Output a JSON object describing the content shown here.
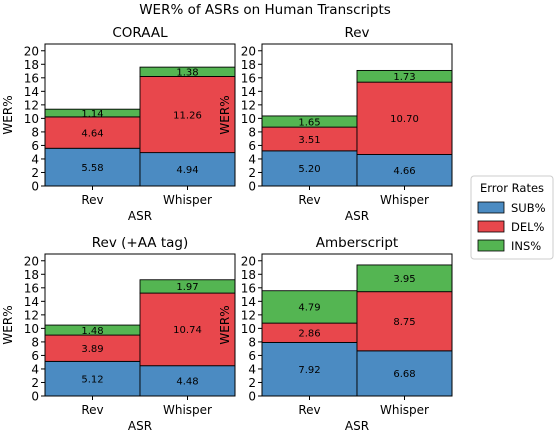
{
  "figure_title": "WER% of ASRs on Human Transcripts",
  "legend": {
    "title": "Error Rates",
    "placement": "right-center",
    "entries": [
      {
        "label": "SUB%",
        "color": "#4b8bc2"
      },
      {
        "label": "DEL%",
        "color": "#e8474c"
      },
      {
        "label": "INS%",
        "color": "#54b552"
      }
    ]
  },
  "chart_data": [
    {
      "type": "bar",
      "stacked": true,
      "title": "CORAAL",
      "xlabel": "ASR",
      "ylabel": "WER%",
      "ylim": [
        0,
        21
      ],
      "yticks": [
        0,
        2,
        4,
        6,
        8,
        10,
        12,
        14,
        16,
        18,
        20
      ],
      "categories": [
        "Rev",
        "Whisper"
      ],
      "series": [
        {
          "name": "SUB%",
          "values": [
            5.58,
            4.94
          ],
          "labels": [
            "5.58",
            "4.94"
          ]
        },
        {
          "name": "DEL%",
          "values": [
            4.64,
            11.26
          ],
          "labels": [
            "4.64",
            "11.26"
          ]
        },
        {
          "name": "INS%",
          "values": [
            1.14,
            1.38
          ],
          "labels": [
            "1.14",
            "1.38"
          ]
        }
      ]
    },
    {
      "type": "bar",
      "stacked": true,
      "title": "Rev",
      "xlabel": "ASR",
      "ylabel": "WER%",
      "ylim": [
        0,
        21
      ],
      "yticks": [
        0,
        2,
        4,
        6,
        8,
        10,
        12,
        14,
        16,
        18,
        20
      ],
      "categories": [
        "Rev",
        "Whisper"
      ],
      "series": [
        {
          "name": "SUB%",
          "values": [
            5.2,
            4.66
          ],
          "labels": [
            "5.20",
            "4.66"
          ]
        },
        {
          "name": "DEL%",
          "values": [
            3.51,
            10.7
          ],
          "labels": [
            "3.51",
            "10.70"
          ]
        },
        {
          "name": "INS%",
          "values": [
            1.65,
            1.73
          ],
          "labels": [
            "1.65",
            "1.73"
          ]
        }
      ]
    },
    {
      "type": "bar",
      "stacked": true,
      "title": "Rev (+AA tag)",
      "xlabel": "ASR",
      "ylabel": "WER%",
      "ylim": [
        0,
        21
      ],
      "yticks": [
        0,
        2,
        4,
        6,
        8,
        10,
        12,
        14,
        16,
        18,
        20
      ],
      "categories": [
        "Rev",
        "Whisper"
      ],
      "series": [
        {
          "name": "SUB%",
          "values": [
            5.12,
            4.48
          ],
          "labels": [
            "5.12",
            "4.48"
          ]
        },
        {
          "name": "DEL%",
          "values": [
            3.89,
            10.74
          ],
          "labels": [
            "3.89",
            "10.74"
          ]
        },
        {
          "name": "INS%",
          "values": [
            1.48,
            1.97
          ],
          "labels": [
            "1.48",
            "1.97"
          ]
        }
      ]
    },
    {
      "type": "bar",
      "stacked": true,
      "title": "Amberscript",
      "xlabel": "ASR",
      "ylabel": "WER%",
      "ylim": [
        0,
        21
      ],
      "yticks": [
        0,
        2,
        4,
        6,
        8,
        10,
        12,
        14,
        16,
        18,
        20
      ],
      "categories": [
        "Rev",
        "Whisper"
      ],
      "series": [
        {
          "name": "SUB%",
          "values": [
            7.92,
            6.68
          ],
          "labels": [
            "7.92",
            "6.68"
          ]
        },
        {
          "name": "DEL%",
          "values": [
            2.86,
            8.75
          ],
          "labels": [
            "2.86",
            "8.75"
          ]
        },
        {
          "name": "INS%",
          "values": [
            4.79,
            3.95
          ],
          "labels": [
            "4.79",
            "3.95"
          ]
        }
      ]
    }
  ]
}
